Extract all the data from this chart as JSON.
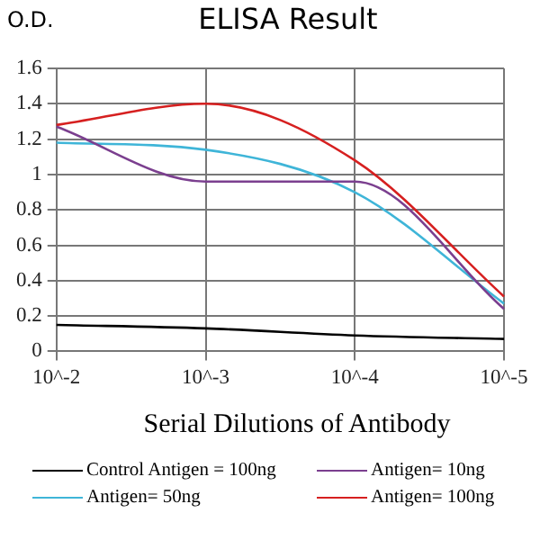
{
  "chart_data": {
    "type": "line",
    "title": "ELISA Result",
    "ylabel": "O.D.",
    "xlabel": "Serial Dilutions of Antibody",
    "categories": [
      "10^-2",
      "10^-3",
      "10^-4",
      "10^-5"
    ],
    "series": [
      {
        "name": "Control Antigen = 100ng",
        "color": "#000000",
        "values": [
          0.15,
          0.13,
          0.09,
          0.07
        ]
      },
      {
        "name": "Antigen= 10ng",
        "color": "#7b3f8f",
        "values": [
          1.27,
          0.96,
          0.96,
          0.24
        ]
      },
      {
        "name": "Antigen= 50ng",
        "color": "#3fb5d8",
        "values": [
          1.18,
          1.14,
          0.9,
          0.27
        ]
      },
      {
        "name": "Antigen= 100ng",
        "color": "#d62020",
        "values": [
          1.28,
          1.4,
          1.08,
          0.31
        ]
      }
    ],
    "ylim": [
      0,
      1.6
    ],
    "yticks": [
      0,
      0.2,
      0.4,
      0.6,
      0.8,
      1,
      1.2,
      1.4,
      1.6
    ],
    "grid": true,
    "legend": "bottom",
    "marker": "none",
    "line_style": "solid"
  }
}
